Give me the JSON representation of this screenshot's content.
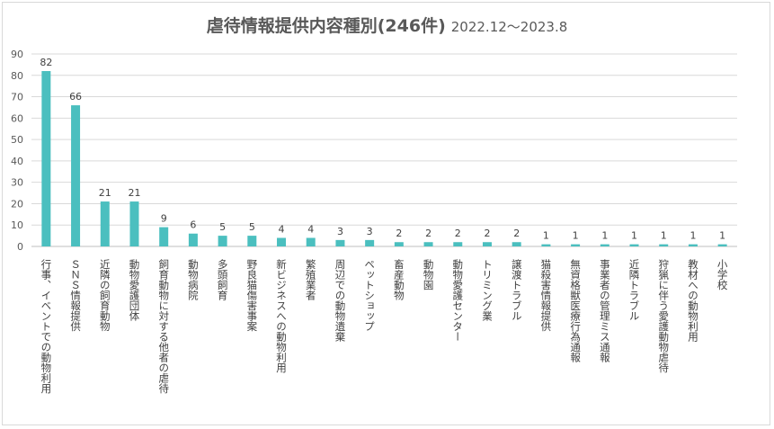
{
  "chart_data": {
    "type": "bar",
    "title": "虐待情報提供内容種別(246件)",
    "subtitle": "2022.12～2023.8",
    "xlabel": "",
    "ylabel": "",
    "ylim": [
      0,
      90
    ],
    "yticks": [
      0,
      10,
      20,
      30,
      40,
      50,
      60,
      70,
      80,
      90
    ],
    "grid": true,
    "bar_color": "#4bbfbf",
    "categories": [
      "行事、イベントでの動物利用",
      "ＳＮＳ情報提供",
      "近隣の飼育動物",
      "動物愛護団体",
      "飼育動物に対する他者の虐待",
      "動物病院",
      "多頭飼育",
      "野良猫傷害事案",
      "新ビジネスへの動物利用",
      "繁殖業者",
      "周辺での動物遺棄",
      "ペットショップ",
      "畜産動物",
      "動物園",
      "動物愛護センター",
      "トリミング業",
      "譲渡トラブル",
      "猫殺害情報提供",
      "無資格獣医療行為通報",
      "事業者の管理ミス通報",
      "近隣トラブル",
      "狩猟に伴う愛護動物虐待",
      "教材への動物利用",
      "小学校"
    ],
    "values": [
      82,
      66,
      21,
      21,
      9,
      6,
      5,
      5,
      4,
      4,
      3,
      3,
      2,
      2,
      2,
      2,
      2,
      1,
      1,
      1,
      1,
      1,
      1,
      1
    ]
  }
}
